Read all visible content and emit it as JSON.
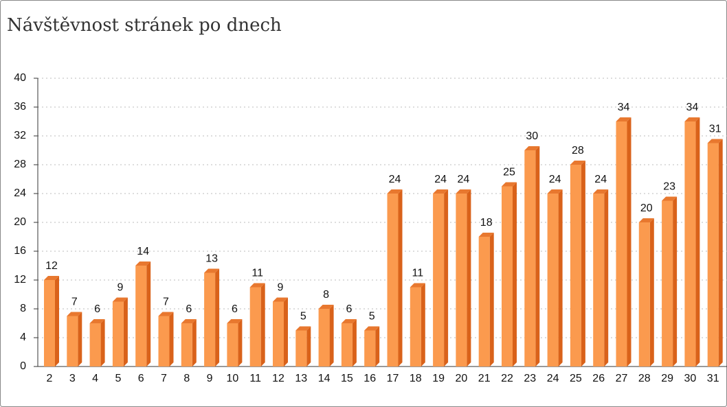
{
  "chart_data": {
    "type": "bar3d",
    "title": "Návštěvnost stránek po dnech",
    "categories": [
      "2",
      "3",
      "4",
      "5",
      "6",
      "7",
      "8",
      "9",
      "10",
      "11",
      "12",
      "13",
      "14",
      "15",
      "16",
      "17",
      "18",
      "19",
      "20",
      "21",
      "22",
      "23",
      "24",
      "25",
      "26",
      "27",
      "28",
      "29",
      "30",
      "31"
    ],
    "values": [
      12,
      7,
      6,
      9,
      14,
      7,
      6,
      13,
      6,
      11,
      9,
      5,
      8,
      6,
      5,
      24,
      11,
      24,
      24,
      18,
      25,
      30,
      24,
      28,
      24,
      34,
      20,
      23,
      34,
      31
    ],
    "color": "#fb9a4e",
    "ylim": [
      0,
      40
    ],
    "yticks": [
      0,
      4,
      8,
      12,
      16,
      20,
      24,
      28,
      32,
      36,
      40
    ],
    "grid": true
  }
}
